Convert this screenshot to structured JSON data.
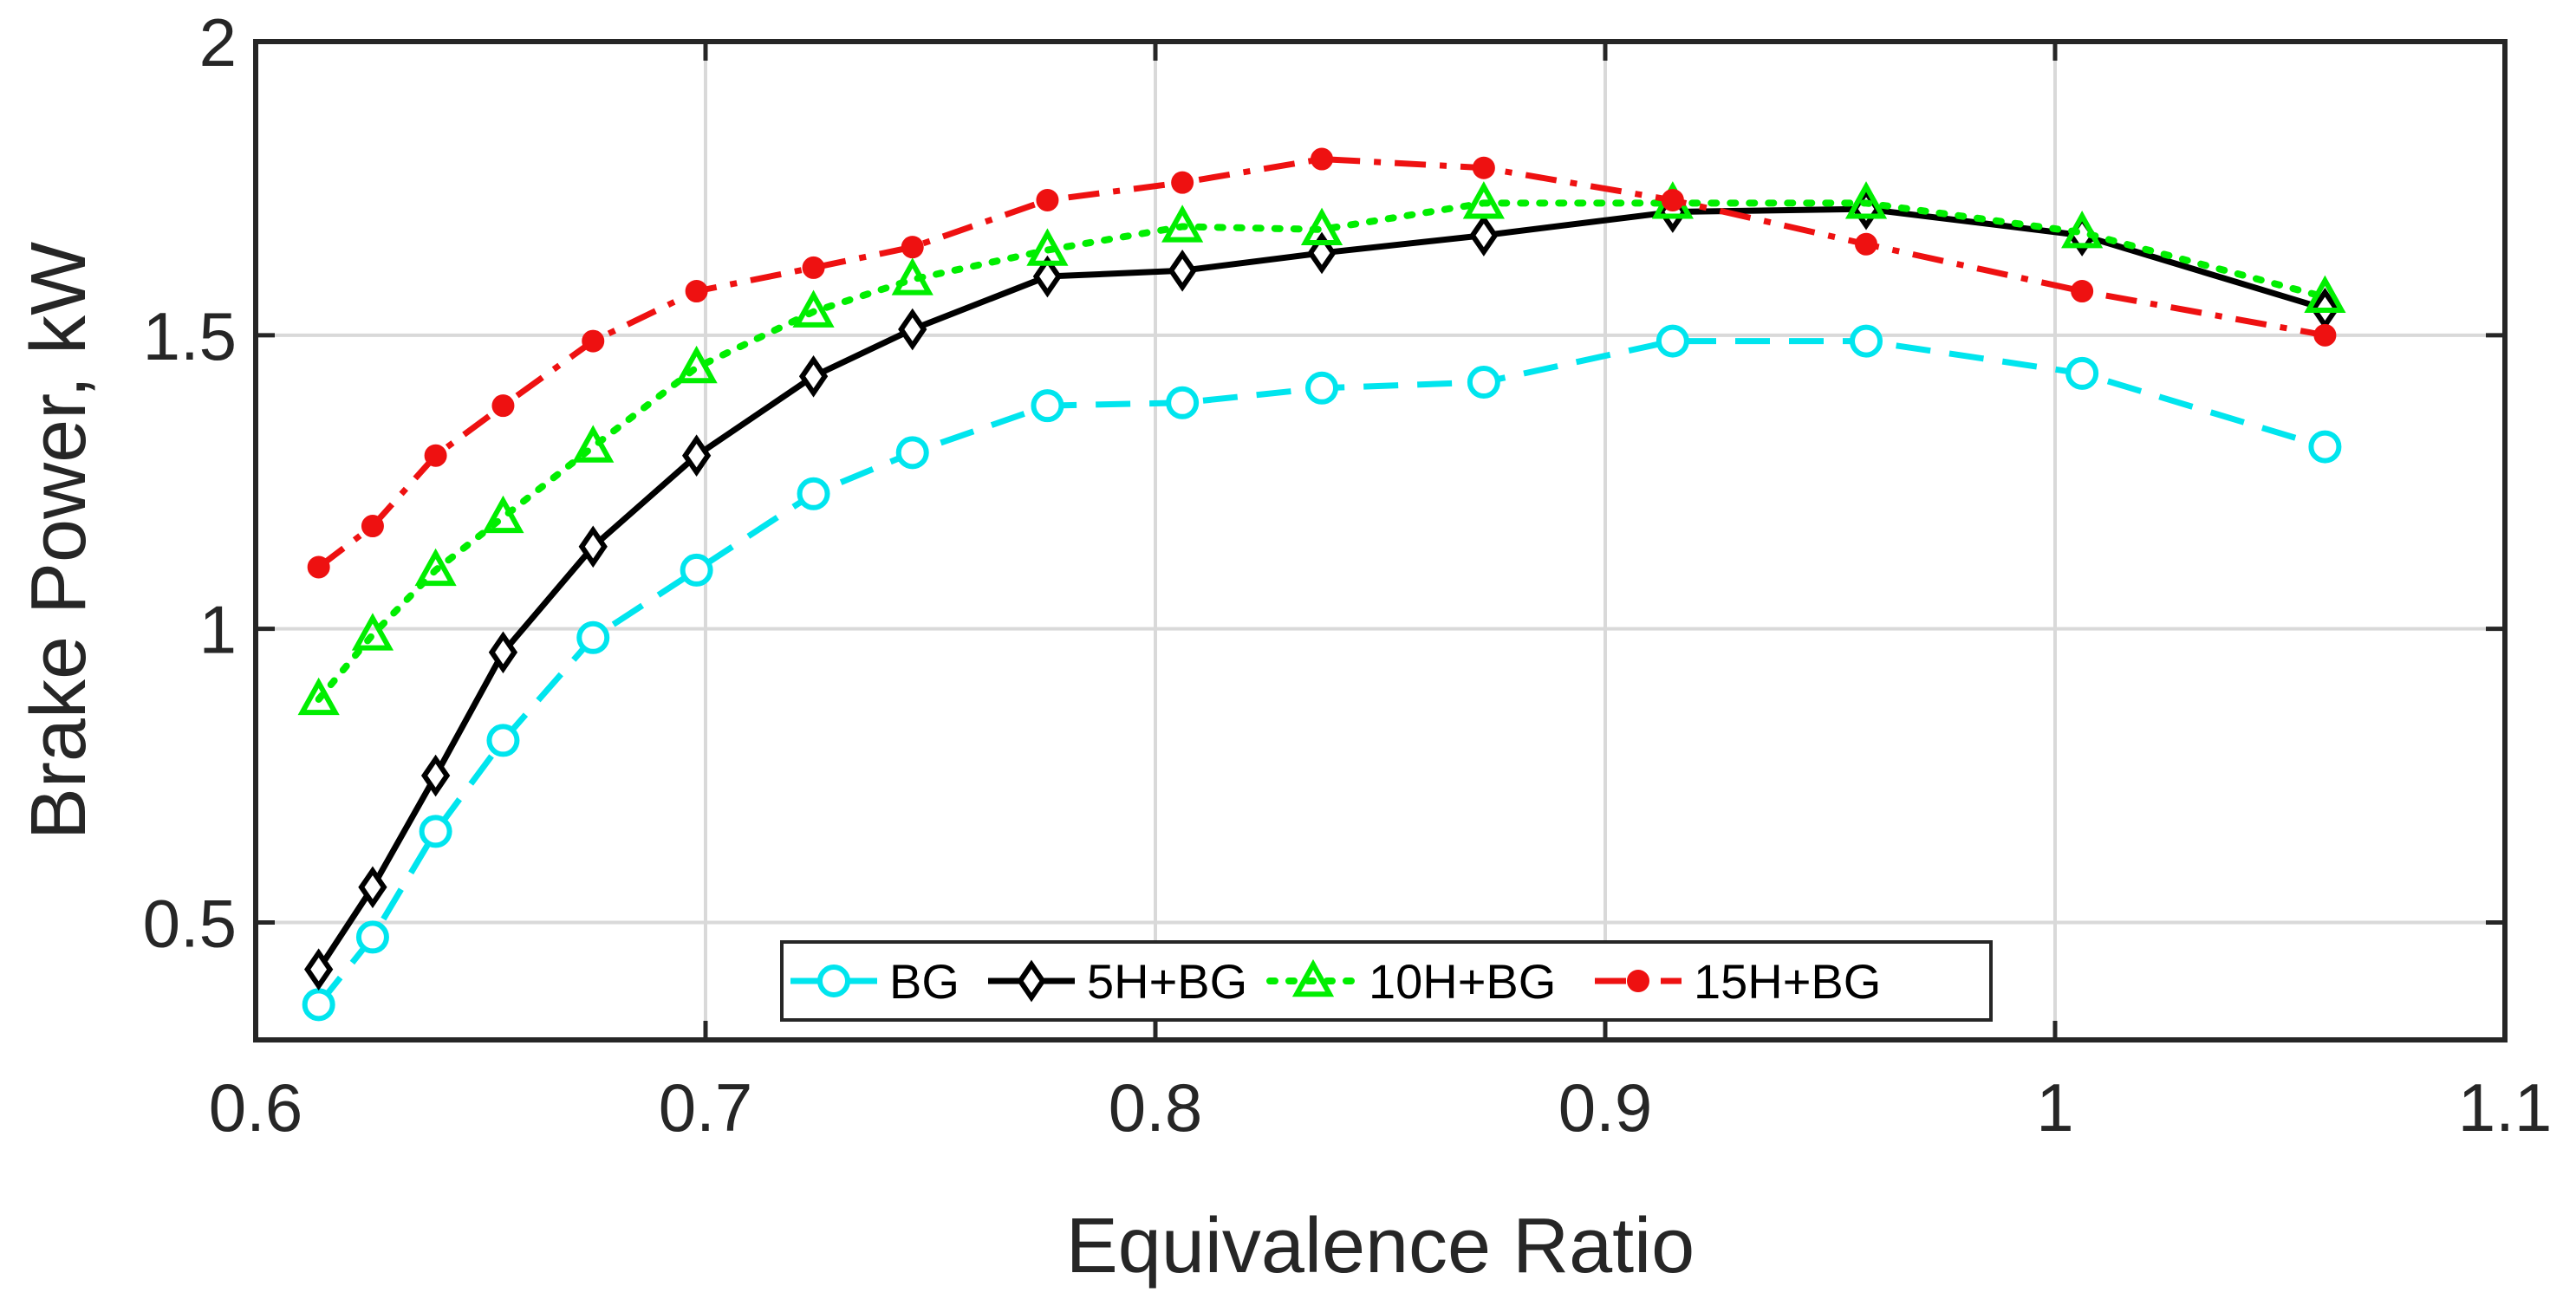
{
  "chart_data": {
    "type": "line",
    "title": "",
    "xlabel": "Equivalence Ratio",
    "ylabel": "Brake Power, kW",
    "xlim": [
      0.6,
      1.1
    ],
    "ylim": [
      0.3,
      2.0
    ],
    "xticks": [
      0.6,
      0.7,
      0.8,
      0.9,
      1.0,
      1.1
    ],
    "xtick_labels": [
      "0.6",
      "0.7",
      "0.8",
      "0.9",
      "1",
      "1.1"
    ],
    "yticks": [
      0.5,
      1.0,
      1.5,
      2.0
    ],
    "ytick_labels": [
      "0.5",
      "1",
      "1.5",
      "2"
    ],
    "grid": true,
    "legend_position": "bottom-center",
    "series": [
      {
        "name": "BG",
        "color": "#00e5ee",
        "line_style": "dashed",
        "marker": "circle",
        "x": [
          0.614,
          0.626,
          0.64,
          0.655,
          0.675,
          0.698,
          0.724,
          0.746,
          0.776,
          0.806,
          0.837,
          0.873,
          0.915,
          0.958,
          1.006,
          1.06
        ],
        "y": [
          0.36,
          0.475,
          0.655,
          0.81,
          0.985,
          1.1,
          1.23,
          1.3,
          1.38,
          1.385,
          1.41,
          1.42,
          1.49,
          1.49,
          1.435,
          1.31
        ]
      },
      {
        "name": "5H+BG",
        "color": "#000000",
        "line_style": "solid",
        "marker": "diamond",
        "x": [
          0.614,
          0.626,
          0.64,
          0.655,
          0.675,
          0.698,
          0.724,
          0.746,
          0.776,
          0.806,
          0.837,
          0.873,
          0.915,
          0.958,
          1.006,
          1.06
        ],
        "y": [
          0.42,
          0.56,
          0.75,
          0.96,
          1.14,
          1.295,
          1.43,
          1.51,
          1.6,
          1.61,
          1.64,
          1.67,
          1.71,
          1.715,
          1.67,
          1.545
        ]
      },
      {
        "name": "10H+BG",
        "color": "#00ee00",
        "line_style": "dotted",
        "marker": "triangle",
        "x": [
          0.614,
          0.626,
          0.64,
          0.655,
          0.675,
          0.698,
          0.724,
          0.746,
          0.776,
          0.806,
          0.837,
          0.873,
          0.915,
          0.958,
          1.006,
          1.06
        ],
        "y": [
          0.88,
          0.99,
          1.1,
          1.19,
          1.31,
          1.445,
          1.54,
          1.595,
          1.645,
          1.685,
          1.68,
          1.725,
          1.725,
          1.725,
          1.675,
          1.565
        ]
      },
      {
        "name": "15H+BG",
        "color": "#ee1111",
        "line_style": "dash-dot",
        "marker": "dot",
        "x": [
          0.614,
          0.626,
          0.64,
          0.655,
          0.675,
          0.698,
          0.724,
          0.746,
          0.776,
          0.806,
          0.837,
          0.873,
          0.915,
          0.958,
          1.006,
          1.06
        ],
        "y": [
          1.105,
          1.175,
          1.295,
          1.38,
          1.49,
          1.575,
          1.615,
          1.65,
          1.73,
          1.76,
          1.8,
          1.785,
          1.73,
          1.655,
          1.575,
          1.5
        ]
      }
    ]
  }
}
